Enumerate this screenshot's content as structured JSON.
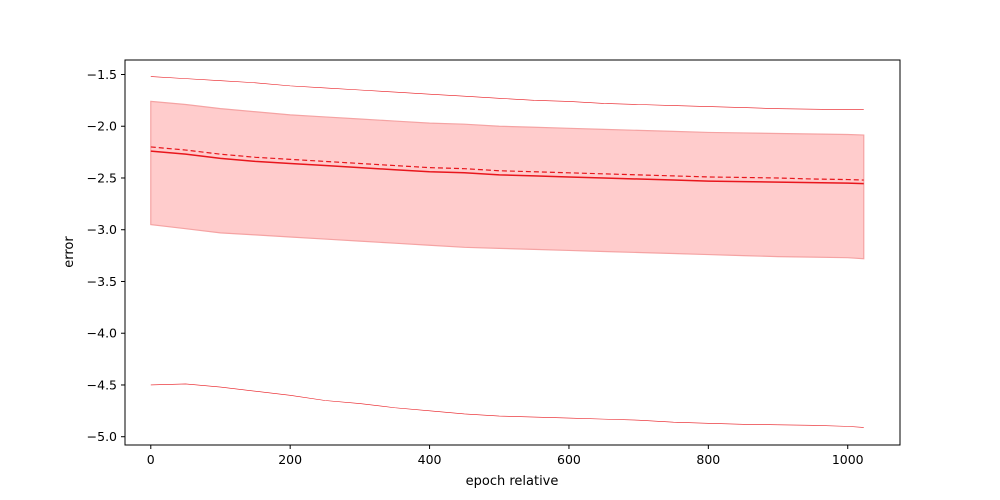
{
  "chart_data": {
    "type": "line",
    "title": "",
    "xlabel": "epoch relative",
    "ylabel": "error",
    "xlim": [
      -37,
      1075
    ],
    "ylim": [
      -5.08,
      -1.36
    ],
    "x_ticks": [
      0,
      200,
      400,
      600,
      800,
      1000
    ],
    "y_ticks": [
      -5.0,
      -4.5,
      -4.0,
      -3.5,
      -3.0,
      -2.5,
      -2.0,
      -1.5
    ],
    "x_tick_labels": [
      "0",
      "200",
      "400",
      "600",
      "800",
      "1000"
    ],
    "y_tick_labels": [
      "−5.0",
      "−4.5",
      "−4.0",
      "−3.5",
      "−3.0",
      "−2.5",
      "−2.0",
      "−1.5"
    ],
    "grid": false,
    "legend": "none",
    "colors": {
      "line": "#e8161c",
      "band": "#ffcccc",
      "band_edge": "#f5a3a3"
    },
    "x": [
      0,
      50,
      100,
      150,
      200,
      250,
      300,
      350,
      400,
      450,
      500,
      550,
      600,
      650,
      700,
      750,
      800,
      850,
      900,
      950,
      1000,
      1023
    ],
    "series": [
      {
        "role": "mean-solid",
        "values": [
          -2.24,
          -2.27,
          -2.31,
          -2.34,
          -2.36,
          -2.38,
          -2.4,
          -2.42,
          -2.44,
          -2.45,
          -2.47,
          -2.48,
          -2.49,
          -2.5,
          -2.51,
          -2.52,
          -2.53,
          -2.535,
          -2.54,
          -2.545,
          -2.55,
          -2.555
        ]
      },
      {
        "role": "median-dashed",
        "values": [
          -2.2,
          -2.23,
          -2.27,
          -2.3,
          -2.32,
          -2.34,
          -2.36,
          -2.38,
          -2.4,
          -2.41,
          -2.43,
          -2.44,
          -2.45,
          -2.46,
          -2.47,
          -2.48,
          -2.49,
          -2.495,
          -2.5,
          -2.51,
          -2.515,
          -2.52
        ]
      },
      {
        "role": "max-thin",
        "values": [
          -1.52,
          -1.54,
          -1.56,
          -1.58,
          -1.61,
          -1.63,
          -1.65,
          -1.67,
          -1.69,
          -1.71,
          -1.73,
          -1.75,
          -1.76,
          -1.78,
          -1.79,
          -1.8,
          -1.81,
          -1.82,
          -1.83,
          -1.835,
          -1.84,
          -1.84
        ]
      },
      {
        "role": "min-thin",
        "values": [
          -4.5,
          -4.49,
          -4.52,
          -4.56,
          -4.6,
          -4.65,
          -4.68,
          -4.72,
          -4.75,
          -4.78,
          -4.8,
          -4.81,
          -4.82,
          -4.83,
          -4.84,
          -4.86,
          -4.87,
          -4.88,
          -4.885,
          -4.89,
          -4.9,
          -4.91
        ]
      },
      {
        "role": "band-upper",
        "values": [
          -1.76,
          -1.79,
          -1.83,
          -1.86,
          -1.89,
          -1.91,
          -1.93,
          -1.95,
          -1.97,
          -1.98,
          -2.0,
          -2.01,
          -2.02,
          -2.03,
          -2.04,
          -2.05,
          -2.06,
          -2.065,
          -2.07,
          -2.075,
          -2.08,
          -2.085
        ]
      },
      {
        "role": "band-lower",
        "values": [
          -2.95,
          -2.99,
          -3.03,
          -3.05,
          -3.07,
          -3.09,
          -3.11,
          -3.13,
          -3.15,
          -3.17,
          -3.18,
          -3.19,
          -3.2,
          -3.21,
          -3.22,
          -3.23,
          -3.24,
          -3.25,
          -3.26,
          -3.265,
          -3.27,
          -3.28
        ]
      }
    ]
  }
}
